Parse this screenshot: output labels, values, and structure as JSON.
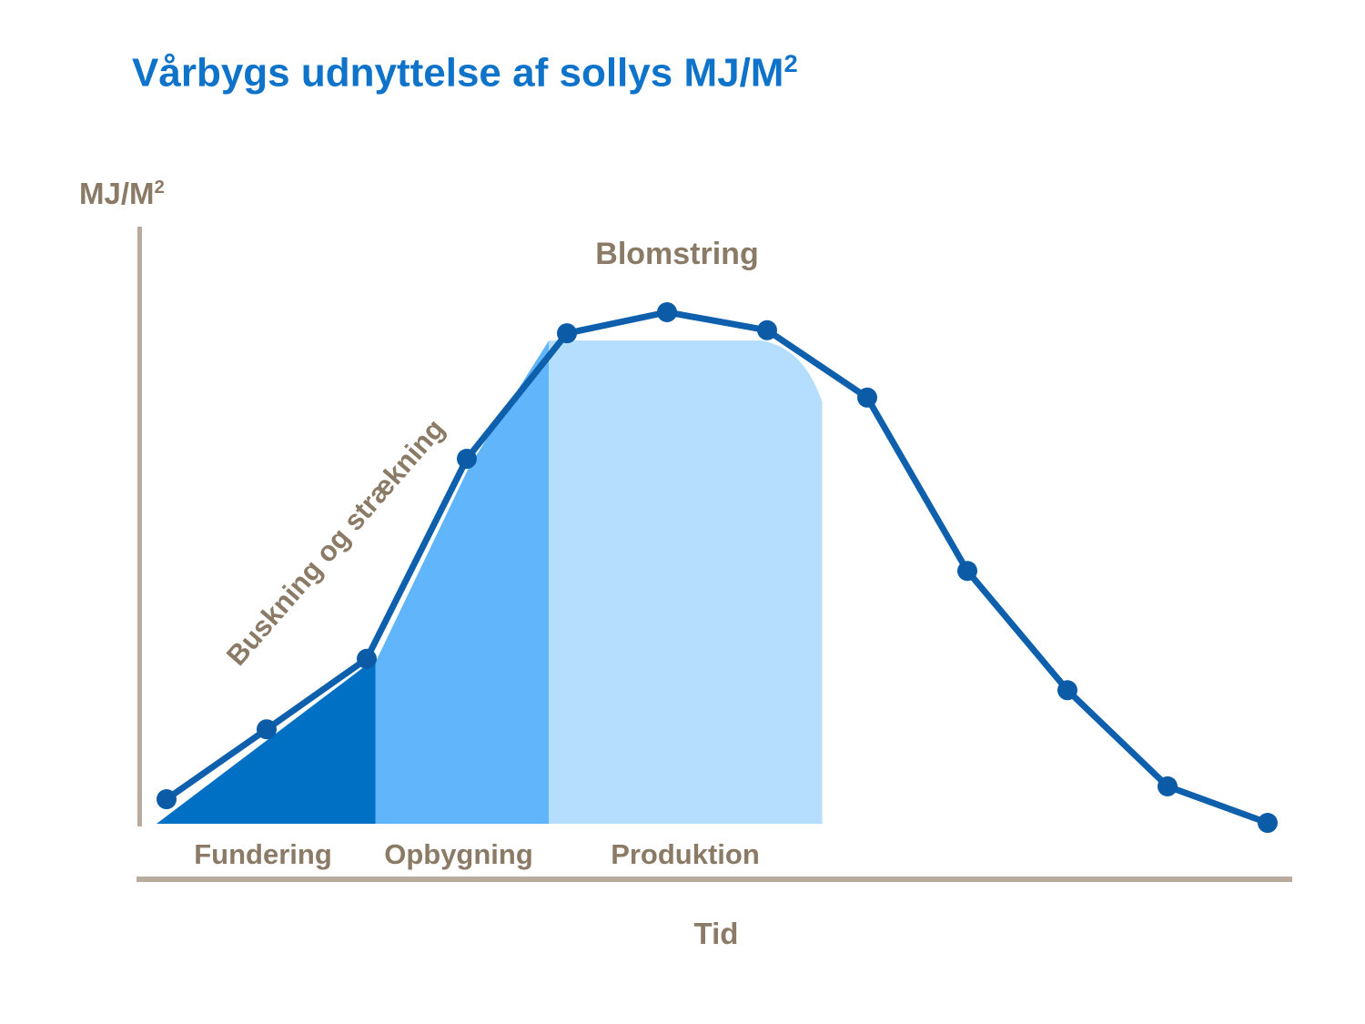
{
  "title": {
    "text": "Vårbygs udnyttelse af sollys MJ/M",
    "sup": "2",
    "color": "#0E73C9"
  },
  "axes": {
    "y_label": {
      "text": "MJ/M",
      "sup": "2"
    },
    "x_label": "Tid",
    "axis_color": "#B9AC9E",
    "label_color": "#8A7A66"
  },
  "annotations": {
    "blomstring": "Blomstring",
    "buskning": "Buskning og strækning"
  },
  "chart_data": {
    "type": "area",
    "title": "Vårbygs udnyttelse af sollys MJ/M2",
    "xlabel": "Tid",
    "ylabel": "MJ/M2",
    "x": [
      1,
      2,
      3,
      4,
      5,
      6,
      7,
      8,
      9,
      10,
      11,
      12
    ],
    "values": [
      5.3,
      18.9,
      32.6,
      71.5,
      95.9,
      100,
      96.5,
      83.4,
      49.7,
      26.5,
      7.8,
      0.7
    ],
    "ylim": [
      0,
      100
    ],
    "grid": false,
    "legend": "none",
    "line_color": "#0E60AD",
    "marker_color": "#0C5BA7",
    "phases": [
      {
        "label": "Fundering",
        "from": 0.9,
        "to": 3.05,
        "color": "#0070C5"
      },
      {
        "label": "Opbygning",
        "from": 3.05,
        "to": 4.82,
        "color": "#61B5FB"
      },
      {
        "label": "Produktion",
        "from": 4.82,
        "to": 7.55,
        "color": "#B5DDFD",
        "cap": 94.5,
        "cap_end": 7.05,
        "edge_value": 82.5
      }
    ]
  }
}
